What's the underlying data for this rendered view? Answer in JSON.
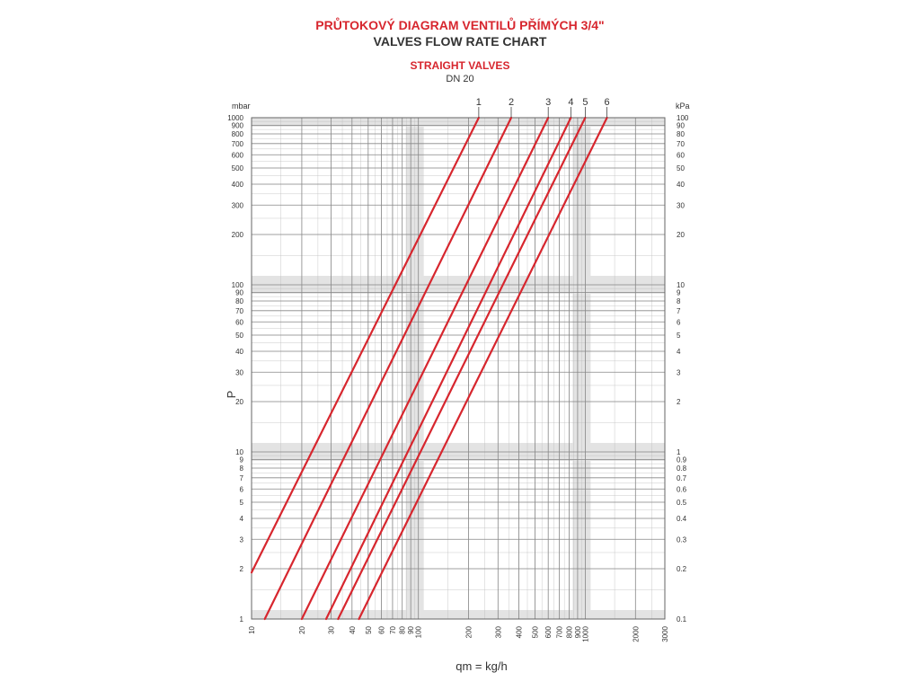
{
  "colors": {
    "title_red": "#d7262e",
    "text": "#333333",
    "grid": "#bdbdbd",
    "band": "#e3e3e3",
    "line": "#d7262e"
  },
  "header": {
    "title_cz": "PRŮTOKOVÝ DIAGRAM VENTILŮ PŘÍMÝCH 3/4\"",
    "title_en": "VALVES FLOW RATE CHART",
    "subtitle_1": "STRAIGHT VALVES",
    "subtitle_2": "DN 20"
  },
  "chart_data": {
    "type": "line",
    "x_scale": "log",
    "y_scale": "log",
    "xlabel": "qm = kg/h",
    "ylabel": "P",
    "y_unit_left": "mbar",
    "y_unit_right": "kPa",
    "xlim": [
      10,
      3000
    ],
    "ylim": [
      1,
      1000
    ],
    "grid": true,
    "x_ticks": [
      {
        "value": 10,
        "label": "10"
      },
      {
        "value": 20,
        "label": "20"
      },
      {
        "value": 30,
        "label": "30"
      },
      {
        "value": 40,
        "label": "40"
      },
      {
        "value": 50,
        "label": "50"
      },
      {
        "value": 60,
        "label": "60"
      },
      {
        "value": 70,
        "label": "70"
      },
      {
        "value": 80,
        "label": "80"
      },
      {
        "value": 90,
        "label": "90"
      },
      {
        "value": 100,
        "label": "100"
      },
      {
        "value": 200,
        "label": "200"
      },
      {
        "value": 300,
        "label": "300"
      },
      {
        "value": 400,
        "label": "400"
      },
      {
        "value": 500,
        "label": "500"
      },
      {
        "value": 600,
        "label": "600"
      },
      {
        "value": 700,
        "label": "700"
      },
      {
        "value": 800,
        "label": "800"
      },
      {
        "value": 900,
        "label": "900"
      },
      {
        "value": 1000,
        "label": "1000"
      },
      {
        "value": 2000,
        "label": "2000"
      },
      {
        "value": 3000,
        "label": "3000"
      }
    ],
    "y_ticks_left": [
      {
        "value": 1,
        "label": "1"
      },
      {
        "value": 2,
        "label": "2"
      },
      {
        "value": 3,
        "label": "3"
      },
      {
        "value": 4,
        "label": "4"
      },
      {
        "value": 5,
        "label": "5"
      },
      {
        "value": 6,
        "label": "6"
      },
      {
        "value": 7,
        "label": "7"
      },
      {
        "value": 8,
        "label": "8"
      },
      {
        "value": 9,
        "label": "9"
      },
      {
        "value": 10,
        "label": "10"
      },
      {
        "value": 20,
        "label": "20"
      },
      {
        "value": 30,
        "label": "30"
      },
      {
        "value": 40,
        "label": "40"
      },
      {
        "value": 50,
        "label": "50"
      },
      {
        "value": 60,
        "label": "60"
      },
      {
        "value": 70,
        "label": "70"
      },
      {
        "value": 80,
        "label": "80"
      },
      {
        "value": 90,
        "label": "90"
      },
      {
        "value": 100,
        "label": "100"
      },
      {
        "value": 200,
        "label": "200"
      },
      {
        "value": 300,
        "label": "300"
      },
      {
        "value": 400,
        "label": "400"
      },
      {
        "value": 500,
        "label": "500"
      },
      {
        "value": 600,
        "label": "600"
      },
      {
        "value": 700,
        "label": "700"
      },
      {
        "value": 800,
        "label": "800"
      },
      {
        "value": 900,
        "label": "900"
      },
      {
        "value": 1000,
        "label": "1000"
      }
    ],
    "y_ticks_right": [
      {
        "value": 1,
        "label": "0.1"
      },
      {
        "value": 2,
        "label": "0.2"
      },
      {
        "value": 3,
        "label": "0.3"
      },
      {
        "value": 4,
        "label": "0.4"
      },
      {
        "value": 5,
        "label": "0.5"
      },
      {
        "value": 6,
        "label": "0.6"
      },
      {
        "value": 7,
        "label": "0.7"
      },
      {
        "value": 8,
        "label": "0.8"
      },
      {
        "value": 9,
        "label": "0.9"
      },
      {
        "value": 10,
        "label": "1"
      },
      {
        "value": 20,
        "label": "2"
      },
      {
        "value": 30,
        "label": "3"
      },
      {
        "value": 40,
        "label": "4"
      },
      {
        "value": 50,
        "label": "5"
      },
      {
        "value": 60,
        "label": "6"
      },
      {
        "value": 70,
        "label": "7"
      },
      {
        "value": 80,
        "label": "8"
      },
      {
        "value": 90,
        "label": "9"
      },
      {
        "value": 100,
        "label": "10"
      },
      {
        "value": 200,
        "label": "20"
      },
      {
        "value": 300,
        "label": "30"
      },
      {
        "value": 400,
        "label": "40"
      },
      {
        "value": 500,
        "label": "50"
      },
      {
        "value": 600,
        "label": "60"
      },
      {
        "value": 700,
        "label": "70"
      },
      {
        "value": 800,
        "label": "80"
      },
      {
        "value": 900,
        "label": "90"
      },
      {
        "value": 1000,
        "label": "100"
      }
    ],
    "series": [
      {
        "name": "1",
        "x": [
          10,
          230
        ],
        "y": [
          1.9,
          1000
        ]
      },
      {
        "name": "2",
        "x": [
          12,
          360
        ],
        "y": [
          1,
          1000
        ]
      },
      {
        "name": "3",
        "x": [
          20,
          600
        ],
        "y": [
          1,
          1000
        ]
      },
      {
        "name": "4",
        "x": [
          28,
          820
        ],
        "y": [
          1,
          1000
        ]
      },
      {
        "name": "5",
        "x": [
          33,
          1000
        ],
        "y": [
          1,
          1000
        ]
      },
      {
        "name": "6",
        "x": [
          44,
          1350
        ],
        "y": [
          1,
          1000
        ]
      }
    ]
  }
}
